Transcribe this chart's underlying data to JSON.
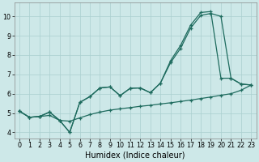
{
  "xlabel": "Humidex (Indice chaleur)",
  "bg_color": "#cde8e8",
  "line_color": "#1e6b5e",
  "grid_color": "#aacfcf",
  "xlim": [
    -0.5,
    23.5
  ],
  "ylim": [
    3.7,
    10.7
  ],
  "yticks": [
    4,
    5,
    6,
    7,
    8,
    9,
    10
  ],
  "xticks": [
    0,
    1,
    2,
    3,
    4,
    5,
    6,
    7,
    8,
    9,
    10,
    11,
    12,
    13,
    14,
    15,
    16,
    17,
    18,
    19,
    20,
    21,
    22,
    23
  ],
  "line1_x": [
    0,
    1,
    2,
    3,
    4,
    5,
    6,
    7,
    8,
    9,
    10,
    11,
    12,
    13,
    14,
    15,
    16,
    17,
    18,
    19,
    20,
    21,
    22,
    23
  ],
  "line1_y": [
    5.1,
    4.78,
    4.82,
    4.88,
    4.62,
    4.58,
    4.75,
    4.92,
    5.05,
    5.15,
    5.22,
    5.28,
    5.35,
    5.4,
    5.47,
    5.53,
    5.6,
    5.67,
    5.75,
    5.83,
    5.92,
    6.0,
    6.18,
    6.45
  ],
  "line2_x": [
    0,
    1,
    2,
    3,
    4,
    5,
    6,
    7,
    8,
    9,
    10,
    11,
    12,
    13,
    14,
    15,
    16,
    17,
    18,
    19,
    20,
    21,
    22,
    23
  ],
  "line2_y": [
    5.1,
    4.78,
    4.82,
    5.05,
    4.62,
    4.0,
    5.55,
    5.85,
    6.3,
    6.35,
    5.9,
    6.28,
    6.3,
    6.05,
    6.55,
    7.6,
    8.35,
    9.4,
    10.05,
    10.15,
    10.0,
    6.8,
    6.5,
    6.45
  ],
  "line3_x": [
    0,
    1,
    2,
    3,
    4,
    5,
    6,
    7,
    8,
    9,
    10,
    11,
    12,
    13,
    14,
    15,
    16,
    17,
    18,
    19,
    20,
    21,
    22,
    23
  ],
  "line3_y": [
    5.1,
    4.78,
    4.82,
    5.05,
    4.62,
    4.0,
    5.55,
    5.85,
    6.3,
    6.35,
    5.9,
    6.28,
    6.3,
    6.05,
    6.55,
    7.7,
    8.5,
    9.55,
    10.2,
    10.25,
    6.8,
    6.8,
    6.5,
    6.45
  ],
  "marker": "+",
  "markersize": 3.5,
  "markeredgewidth": 0.9,
  "linewidth": 0.9,
  "tick_fontsize": 5.8,
  "label_fontsize": 7.0
}
